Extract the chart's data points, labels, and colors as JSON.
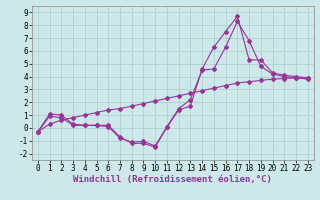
{
  "xlabel": "Windchill (Refroidissement éolien,°C)",
  "xlim": [
    -0.5,
    23.5
  ],
  "ylim": [
    -2.5,
    9.5
  ],
  "xticks": [
    0,
    1,
    2,
    3,
    4,
    5,
    6,
    7,
    8,
    9,
    10,
    11,
    12,
    13,
    14,
    15,
    16,
    17,
    18,
    19,
    20,
    21,
    22,
    23
  ],
  "yticks": [
    -2,
    -1,
    0,
    1,
    2,
    3,
    4,
    5,
    6,
    7,
    8,
    9
  ],
  "background_color": "#cce8e8",
  "grid_color": "#aacccc",
  "line_color": "#993399",
  "line1_x": [
    0,
    1,
    2,
    3,
    4,
    5,
    6,
    7,
    8,
    9,
    10,
    11,
    12,
    13,
    14,
    15,
    16,
    17,
    18,
    19,
    20,
    21,
    22,
    23
  ],
  "line1_y": [
    -0.3,
    1.1,
    1.0,
    0.3,
    0.2,
    0.2,
    0.2,
    -0.7,
    -1.2,
    -1.2,
    -1.5,
    0.05,
    1.4,
    1.7,
    4.6,
    6.3,
    7.5,
    8.7,
    5.3,
    5.3,
    4.3,
    4.1,
    4.0,
    3.9
  ],
  "line2_x": [
    0,
    1,
    2,
    3,
    4,
    5,
    6,
    7,
    8,
    9,
    10,
    11,
    12,
    13,
    14,
    15,
    16,
    17,
    18,
    19,
    20,
    21,
    22,
    23
  ],
  "line2_y": [
    -0.3,
    0.9,
    0.8,
    0.2,
    0.2,
    0.2,
    0.1,
    -0.8,
    -1.1,
    -1.05,
    -1.4,
    0.1,
    1.5,
    2.2,
    4.5,
    4.6,
    6.3,
    8.3,
    6.8,
    4.8,
    4.2,
    4.0,
    3.9,
    3.8
  ],
  "line3_x": [
    0,
    1,
    2,
    3,
    4,
    5,
    6,
    7,
    8,
    9,
    10,
    11,
    12,
    13,
    14,
    15,
    16,
    17,
    18,
    19,
    20,
    21,
    22,
    23
  ],
  "line3_y": [
    -0.3,
    0.3,
    0.6,
    0.8,
    1.0,
    1.2,
    1.4,
    1.5,
    1.7,
    1.9,
    2.1,
    2.3,
    2.5,
    2.7,
    2.9,
    3.1,
    3.3,
    3.5,
    3.6,
    3.7,
    3.8,
    3.85,
    3.9,
    3.9
  ],
  "marker": "D",
  "markersize": 2.0,
  "linewidth": 0.8,
  "tick_fontsize": 5.5,
  "label_fontsize": 6.5
}
